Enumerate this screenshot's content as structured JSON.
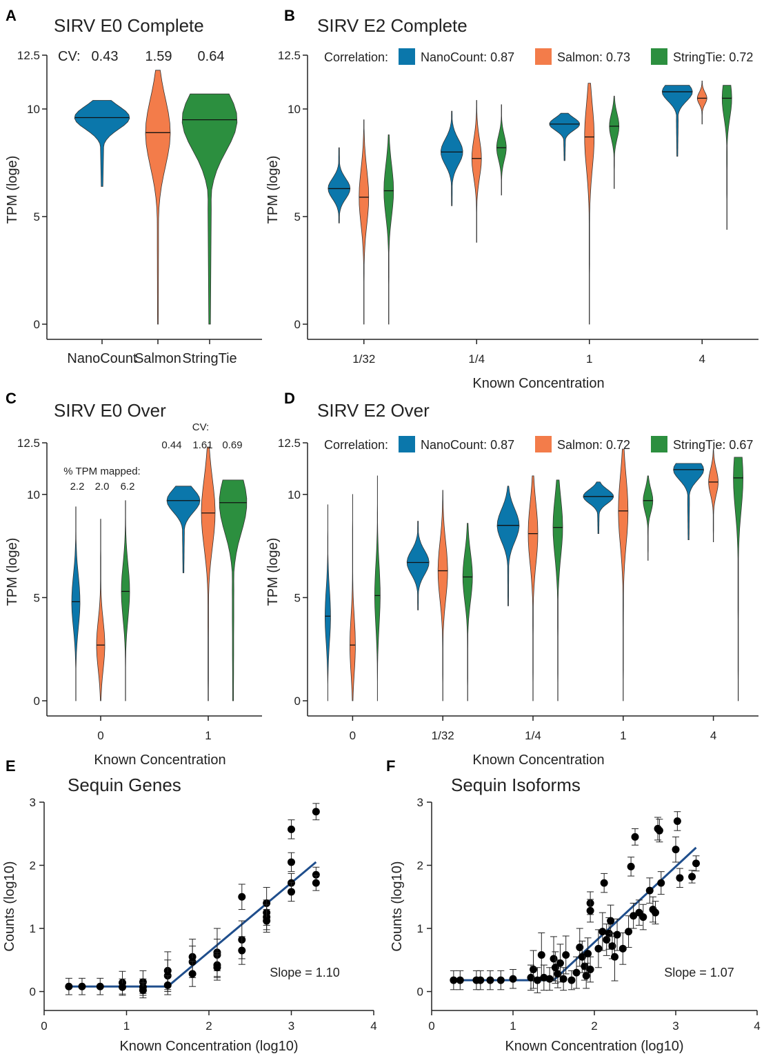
{
  "colors": {
    "NanoCount": "#0b77ab",
    "Salmon": "#f37c4a",
    "StringTie": "#2c8f3f",
    "fit_line": "#1f4e8c"
  },
  "chart_data": [
    {
      "panel": "A",
      "type": "violin",
      "title": "SIRV E0 Complete",
      "xlabel": "",
      "ylabel": "TPM (loge)",
      "ylim": [
        0,
        12.5
      ],
      "yticks": [
        "0",
        "5",
        "10",
        "12.5"
      ],
      "categories": [
        "NanoCount",
        "Salmon",
        "StringTie"
      ],
      "annotation_label": "CV:",
      "annotation_values": [
        "0.43",
        "1.59",
        "0.64"
      ],
      "medians": [
        9.6,
        8.9,
        9.5
      ],
      "ranges": [
        [
          6.4,
          10.4
        ],
        [
          0,
          11.8
        ],
        [
          0,
          10.7
        ]
      ]
    },
    {
      "panel": "B",
      "type": "violin",
      "title": "SIRV E2 Complete",
      "xlabel": "Known Concentration",
      "ylabel": "TPM (loge)",
      "ylim": [
        0,
        12.5
      ],
      "yticks": [
        "0",
        "5",
        "10",
        "12.5"
      ],
      "categories": [
        "1/32",
        "1/4",
        "1",
        "4"
      ],
      "correlation_label": "Correlation:",
      "legend": [
        "NanoCount: 0.87",
        "Salmon: 0.73",
        "StringTie: 0.72"
      ],
      "medians": [
        [
          6.3,
          5.9,
          6.2
        ],
        [
          8.0,
          7.7,
          8.2
        ],
        [
          9.3,
          8.7,
          9.2
        ],
        [
          10.8,
          10.5,
          10.5
        ]
      ],
      "ranges": [
        [
          [
            4.7,
            8.2
          ],
          [
            0,
            9.5
          ],
          [
            0,
            8.8
          ]
        ],
        [
          [
            5.5,
            9.9
          ],
          [
            3.8,
            10.4
          ],
          [
            6.0,
            10.2
          ]
        ],
        [
          [
            7.6,
            9.8
          ],
          [
            0,
            11.2
          ],
          [
            6.3,
            10.6
          ]
        ],
        [
          [
            7.8,
            11.1
          ],
          [
            9.3,
            11.3
          ],
          [
            4.4,
            11.1
          ]
        ]
      ]
    },
    {
      "panel": "C",
      "type": "violin",
      "title": "SIRV E0 Over",
      "xlabel": "Known Concentration",
      "ylabel": "TPM (loge)",
      "ylim": [
        0,
        12.5
      ],
      "yticks": [
        "0",
        "5",
        "10",
        "12.5"
      ],
      "categories": [
        "0",
        "1"
      ],
      "mapped_label": "% TPM mapped:",
      "mapped_values": [
        "2.2",
        "2.0",
        "6.2"
      ],
      "cv_label": "CV:",
      "cv_values": [
        "0.44",
        "1.61",
        "0.69"
      ],
      "medians": [
        [
          4.8,
          2.7,
          5.3
        ],
        [
          9.7,
          9.1,
          9.6
        ]
      ],
      "ranges": [
        [
          [
            0,
            9.4
          ],
          [
            0,
            8.8
          ],
          [
            0,
            9.7
          ]
        ],
        [
          [
            6.2,
            10.4
          ],
          [
            0,
            12.3
          ],
          [
            0,
            10.7
          ]
        ]
      ]
    },
    {
      "panel": "D",
      "type": "violin",
      "title": "SIRV E2 Over",
      "xlabel": "Known Concentration",
      "ylabel": "TPM (loge)",
      "ylim": [
        0,
        12.5
      ],
      "yticks": [
        "0",
        "5",
        "10",
        "12.5"
      ],
      "categories": [
        "0",
        "1/32",
        "1/4",
        "1",
        "4"
      ],
      "correlation_label": "Correlation:",
      "legend": [
        "NanoCount: 0.87",
        "Salmon: 0.72",
        "StringTie: 0.67"
      ],
      "medians": [
        [
          4.1,
          2.7,
          5.1
        ],
        [
          6.7,
          6.3,
          6.0
        ],
        [
          8.5,
          8.1,
          8.4
        ],
        [
          9.9,
          9.2,
          9.7
        ],
        [
          11.2,
          10.6,
          10.8
        ]
      ],
      "ranges": [
        [
          [
            0,
            9.5
          ],
          [
            0,
            10.0
          ],
          [
            0,
            10.9
          ]
        ],
        [
          [
            4.4,
            8.7
          ],
          [
            0,
            10.2
          ],
          [
            0,
            8.6
          ]
        ],
        [
          [
            4.6,
            10.4
          ],
          [
            0,
            10.9
          ],
          [
            0,
            10.7
          ]
        ],
        [
          [
            8.1,
            10.6
          ],
          [
            0,
            12.2
          ],
          [
            6.8,
            10.9
          ]
        ],
        [
          [
            7.8,
            11.5
          ],
          [
            7.7,
            12.2
          ],
          [
            0,
            11.8
          ]
        ]
      ]
    },
    {
      "panel": "E",
      "type": "scatter",
      "title": "Sequin Genes",
      "xlabel": "Known Concentration (log10)",
      "ylabel": "Counts (log10)",
      "xlim": [
        0,
        4
      ],
      "ylim": [
        -0.3,
        3
      ],
      "xticks": [
        "0",
        "1",
        "2",
        "3",
        "4"
      ],
      "yticks": [
        "0",
        "1",
        "2",
        "3"
      ],
      "slope_text": "Slope = 1.10",
      "points": [
        {
          "x": 0.3,
          "y": 0.08,
          "e": 0.13
        },
        {
          "x": 0.46,
          "y": 0.08,
          "e": 0.13
        },
        {
          "x": 0.68,
          "y": 0.08,
          "e": 0.13
        },
        {
          "x": 0.95,
          "y": 0.14,
          "e": 0.18
        },
        {
          "x": 0.95,
          "y": 0.07,
          "e": 0.13
        },
        {
          "x": 1.2,
          "y": 0.15,
          "e": 0.18
        },
        {
          "x": 1.2,
          "y": 0.07,
          "e": 0.13
        },
        {
          "x": 1.2,
          "y": 0.02,
          "e": 0.12
        },
        {
          "x": 1.5,
          "y": 0.33,
          "e": 0.3
        },
        {
          "x": 1.5,
          "y": 0.25,
          "e": 0.25
        },
        {
          "x": 1.5,
          "y": 0.1,
          "e": 0.15
        },
        {
          "x": 1.8,
          "y": 0.55,
          "e": 0.28
        },
        {
          "x": 1.8,
          "y": 0.47,
          "e": 0.25
        },
        {
          "x": 1.8,
          "y": 0.28,
          "e": 0.2
        },
        {
          "x": 2.1,
          "y": 0.62,
          "e": 0.38
        },
        {
          "x": 2.1,
          "y": 0.58,
          "e": 0.25
        },
        {
          "x": 2.1,
          "y": 0.42,
          "e": 0.2
        },
        {
          "x": 2.1,
          "y": 0.38,
          "e": 0.2
        },
        {
          "x": 2.4,
          "y": 1.5,
          "e": 0.2
        },
        {
          "x": 2.4,
          "y": 0.82,
          "e": 0.3
        },
        {
          "x": 2.4,
          "y": 0.65,
          "e": 0.22
        },
        {
          "x": 2.7,
          "y": 1.4,
          "e": 0.25
        },
        {
          "x": 2.7,
          "y": 1.25,
          "e": 0.2
        },
        {
          "x": 2.7,
          "y": 1.18,
          "e": 0.2
        },
        {
          "x": 2.7,
          "y": 1.12,
          "e": 0.18
        },
        {
          "x": 3.0,
          "y": 2.57,
          "e": 0.15
        },
        {
          "x": 3.0,
          "y": 2.05,
          "e": 0.15
        },
        {
          "x": 3.0,
          "y": 1.72,
          "e": 0.15
        },
        {
          "x": 3.0,
          "y": 1.58,
          "e": 0.15
        },
        {
          "x": 3.3,
          "y": 2.85,
          "e": 0.13
        },
        {
          "x": 3.3,
          "y": 1.85,
          "e": 0.12
        },
        {
          "x": 3.3,
          "y": 1.72,
          "e": 0.12
        }
      ],
      "fit": [
        [
          0.3,
          0.08
        ],
        [
          1.5,
          0.08
        ],
        [
          3.3,
          2.05
        ]
      ]
    },
    {
      "panel": "F",
      "type": "scatter",
      "title": "Sequin Isoforms",
      "xlabel": "Known Concentration (log10)",
      "ylabel": "Counts (log10)",
      "xlim": [
        0,
        4
      ],
      "ylim": [
        -0.3,
        3
      ],
      "xticks": [
        "0",
        "1",
        "2",
        "3",
        "4"
      ],
      "yticks": [
        "0",
        "1",
        "2",
        "3"
      ],
      "slope_text": "Slope = 1.07",
      "points": [
        {
          "x": 0.27,
          "y": 0.18,
          "e": 0.15
        },
        {
          "x": 0.35,
          "y": 0.18,
          "e": 0.15
        },
        {
          "x": 0.55,
          "y": 0.18,
          "e": 0.15
        },
        {
          "x": 0.6,
          "y": 0.18,
          "e": 0.15
        },
        {
          "x": 0.72,
          "y": 0.18,
          "e": 0.15
        },
        {
          "x": 0.85,
          "y": 0.18,
          "e": 0.15
        },
        {
          "x": 1.0,
          "y": 0.2,
          "e": 0.15
        },
        {
          "x": 1.22,
          "y": 0.22,
          "e": 0.2
        },
        {
          "x": 1.25,
          "y": 0.35,
          "e": 0.3
        },
        {
          "x": 1.3,
          "y": 0.18,
          "e": 0.2
        },
        {
          "x": 1.35,
          "y": 0.58,
          "e": 0.35
        },
        {
          "x": 1.38,
          "y": 0.22,
          "e": 0.2
        },
        {
          "x": 1.45,
          "y": 0.2,
          "e": 0.18
        },
        {
          "x": 1.5,
          "y": 0.52,
          "e": 0.35
        },
        {
          "x": 1.52,
          "y": 0.38,
          "e": 0.25
        },
        {
          "x": 1.55,
          "y": 0.28,
          "e": 0.22
        },
        {
          "x": 1.58,
          "y": 0.45,
          "e": 0.3
        },
        {
          "x": 1.62,
          "y": 0.2,
          "e": 0.18
        },
        {
          "x": 1.65,
          "y": 0.58,
          "e": 0.3
        },
        {
          "x": 1.72,
          "y": 0.18,
          "e": 0.15
        },
        {
          "x": 1.78,
          "y": 0.3,
          "e": 0.25
        },
        {
          "x": 1.82,
          "y": 0.7,
          "e": 0.3
        },
        {
          "x": 1.85,
          "y": 0.55,
          "e": 0.25
        },
        {
          "x": 1.88,
          "y": 0.4,
          "e": 0.22
        },
        {
          "x": 1.9,
          "y": 0.25,
          "e": 0.2
        },
        {
          "x": 1.92,
          "y": 0.6,
          "e": 0.25
        },
        {
          "x": 1.95,
          "y": 0.35,
          "e": 0.2
        },
        {
          "x": 1.95,
          "y": 1.4,
          "e": 0.18
        },
        {
          "x": 1.95,
          "y": 1.28,
          "e": 0.18
        },
        {
          "x": 2.05,
          "y": 0.68,
          "e": 0.3
        },
        {
          "x": 2.1,
          "y": 0.95,
          "e": 0.3
        },
        {
          "x": 2.12,
          "y": 1.72,
          "e": 0.15
        },
        {
          "x": 2.15,
          "y": 0.82,
          "e": 0.25
        },
        {
          "x": 2.18,
          "y": 0.92,
          "e": 0.25
        },
        {
          "x": 2.2,
          "y": 1.12,
          "e": 0.25
        },
        {
          "x": 2.22,
          "y": 0.72,
          "e": 0.2
        },
        {
          "x": 2.25,
          "y": 0.55,
          "e": 0.38
        },
        {
          "x": 2.28,
          "y": 0.9,
          "e": 0.25
        },
        {
          "x": 2.35,
          "y": 0.68,
          "e": 0.25
        },
        {
          "x": 2.42,
          "y": 0.95,
          "e": 0.25
        },
        {
          "x": 2.45,
          "y": 1.98,
          "e": 0.15
        },
        {
          "x": 2.48,
          "y": 1.2,
          "e": 0.2
        },
        {
          "x": 2.5,
          "y": 2.45,
          "e": 0.13
        },
        {
          "x": 2.55,
          "y": 1.25,
          "e": 0.2
        },
        {
          "x": 2.6,
          "y": 1.18,
          "e": 0.2
        },
        {
          "x": 2.68,
          "y": 1.6,
          "e": 0.2
        },
        {
          "x": 2.72,
          "y": 1.3,
          "e": 0.2
        },
        {
          "x": 2.75,
          "y": 1.25,
          "e": 0.18
        },
        {
          "x": 2.78,
          "y": 2.58,
          "e": 0.18
        },
        {
          "x": 2.8,
          "y": 2.55,
          "e": 0.18
        },
        {
          "x": 2.82,
          "y": 1.72,
          "e": 0.18
        },
        {
          "x": 3.0,
          "y": 2.25,
          "e": 0.2
        },
        {
          "x": 3.02,
          "y": 2.7,
          "e": 0.15
        },
        {
          "x": 3.05,
          "y": 1.8,
          "e": 0.15
        },
        {
          "x": 3.2,
          "y": 1.82,
          "e": 0.1
        },
        {
          "x": 3.25,
          "y": 2.03,
          "e": 0.12
        }
      ],
      "fit": [
        [
          0.27,
          0.18
        ],
        [
          1.5,
          0.18
        ],
        [
          3.25,
          2.28
        ]
      ]
    }
  ]
}
